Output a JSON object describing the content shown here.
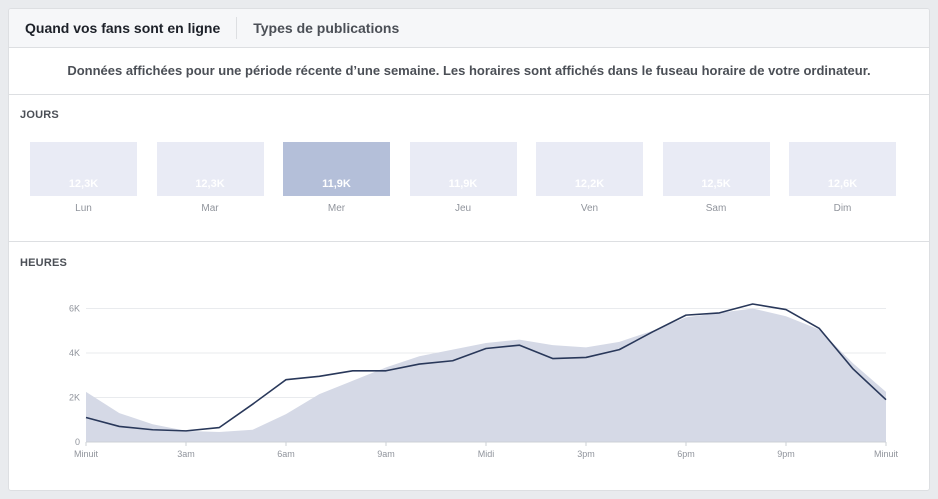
{
  "tabs": [
    {
      "label": "Quand vos fans sont en ligne",
      "active": true
    },
    {
      "label": "Types de publications",
      "active": false
    }
  ],
  "notice": "Données affichées pour une période récente d’une semaine. Les horaires sont affichés dans le fuseau horaire de votre ordinateur.",
  "days_section": {
    "title": "JOURS",
    "days": [
      {
        "label": "Lun",
        "value": "12,3K",
        "selected": false
      },
      {
        "label": "Mar",
        "value": "12,3K",
        "selected": false
      },
      {
        "label": "Mer",
        "value": "11,9K",
        "selected": true
      },
      {
        "label": "Jeu",
        "value": "11,9K",
        "selected": false
      },
      {
        "label": "Ven",
        "value": "12,2K",
        "selected": false
      },
      {
        "label": "Sam",
        "value": "12,5K",
        "selected": false
      },
      {
        "label": "Dim",
        "value": "12,6K",
        "selected": false
      }
    ]
  },
  "hours_section": {
    "title": "HEURES"
  },
  "colors": {
    "area": "#d5d9e6",
    "line": "#29385a",
    "grid": "#e9ebee",
    "selected_day": "#b4bfd9",
    "day": "#e9ebf5"
  },
  "chart_data": {
    "type": "line",
    "x": [
      0,
      1,
      2,
      3,
      4,
      5,
      6,
      7,
      8,
      9,
      10,
      11,
      12,
      13,
      14,
      15,
      16,
      17,
      18,
      19,
      20,
      21,
      22,
      23,
      24
    ],
    "x_ticks": [
      {
        "x": 0,
        "label": "Minuit"
      },
      {
        "x": 3,
        "label": "3am"
      },
      {
        "x": 6,
        "label": "6am"
      },
      {
        "x": 9,
        "label": "9am"
      },
      {
        "x": 12,
        "label": "Midi"
      },
      {
        "x": 15,
        "label": "3pm"
      },
      {
        "x": 18,
        "label": "6pm"
      },
      {
        "x": 21,
        "label": "9pm"
      },
      {
        "x": 24,
        "label": "Minuit"
      }
    ],
    "y_ticks": [
      {
        "y": 0,
        "label": "0"
      },
      {
        "y": 2000,
        "label": "2K"
      },
      {
        "y": 4000,
        "label": "4K"
      },
      {
        "y": 6000,
        "label": "6K"
      }
    ],
    "ylim": [
      0,
      6200
    ],
    "xlim": [
      0,
      24
    ],
    "series": [
      {
        "style": "area",
        "values": [
          2250,
          1300,
          800,
          500,
          450,
          550,
          1250,
          2150,
          2750,
          3350,
          3850,
          4150,
          4450,
          4600,
          4350,
          4250,
          4500,
          5000,
          5600,
          5800,
          6000,
          5650,
          5050,
          3550,
          2250
        ]
      },
      {
        "style": "line",
        "values": [
          1100,
          700,
          550,
          500,
          650,
          1700,
          2800,
          2950,
          3200,
          3200,
          3500,
          3650,
          4200,
          4350,
          3750,
          3800,
          4150,
          4950,
          5700,
          5800,
          6200,
          5950,
          5100,
          3300,
          1900
        ]
      }
    ]
  }
}
